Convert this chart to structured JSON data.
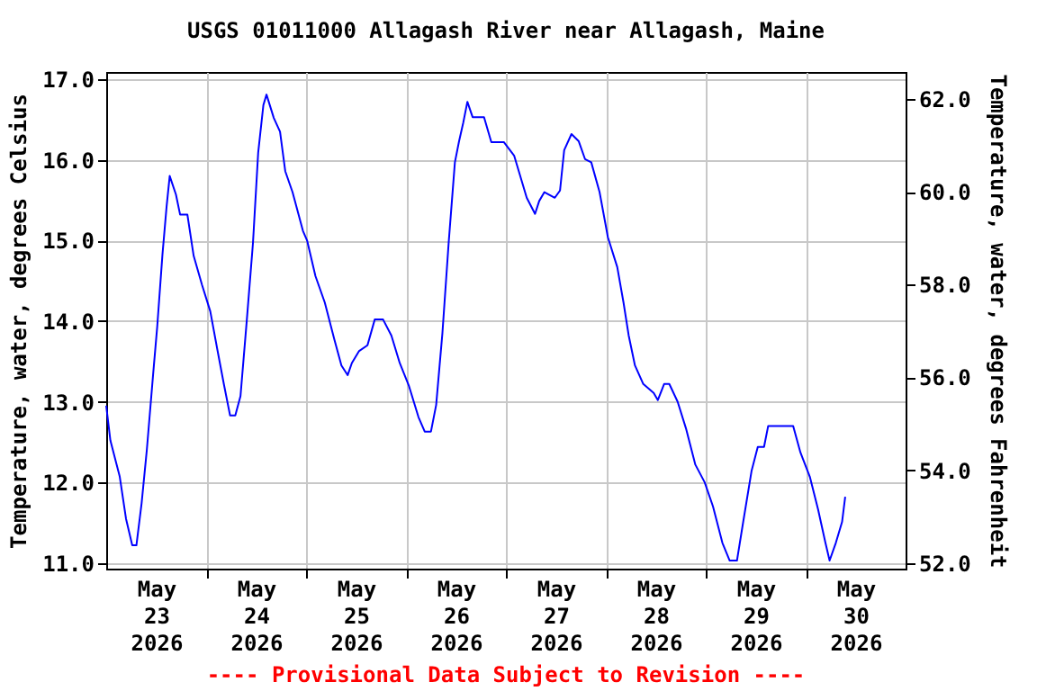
{
  "chart_data": {
    "type": "line",
    "title": "USGS 01011000 Allagash River near Allagash, Maine",
    "ylabel": "Temperature, water, degrees Celsius",
    "y2label": "Temperature, water, degrees Fahrenheit",
    "annotations": [
      "---- Provisional Data Subject to Revision ----"
    ],
    "xlim": [
      "2026-05-23T00:00",
      "2026-05-31T00:00"
    ],
    "xticks": [
      {
        "value": "2026-05-23T12:00",
        "label": "May\n23\n2026"
      },
      {
        "value": "2026-05-24T00:00",
        "label": null
      },
      {
        "value": "2026-05-24T12:00",
        "label": "May\n24\n2026"
      },
      {
        "value": "2026-05-25T00:00",
        "label": null
      },
      {
        "value": "2026-05-25T12:00",
        "label": "May\n25\n2026"
      },
      {
        "value": "2026-05-26T00:00",
        "label": null
      },
      {
        "value": "2026-05-26T12:00",
        "label": "May\n26\n2026"
      },
      {
        "value": "2026-05-27T00:00",
        "label": null
      },
      {
        "value": "2026-05-27T12:00",
        "label": "May\n27\n2026"
      },
      {
        "value": "2026-05-28T00:00",
        "label": null
      },
      {
        "value": "2026-05-28T12:00",
        "label": "May\n28\n2026"
      },
      {
        "value": "2026-05-29T00:00",
        "label": null
      },
      {
        "value": "2026-05-29T12:00",
        "label": "May\n29\n2026"
      },
      {
        "value": "2026-05-30T00:00",
        "label": null
      },
      {
        "value": "2026-05-30T12:00",
        "label": "May\n30\n2026"
      }
    ],
    "ylim": [
      10.93,
      17.09
    ],
    "yticks": [
      {
        "value": 11,
        "label": "11.0"
      },
      {
        "value": 12,
        "label": "12.0"
      },
      {
        "value": 13,
        "label": "13.0"
      },
      {
        "value": 14,
        "label": "14.0"
      },
      {
        "value": 15,
        "label": "15.0"
      },
      {
        "value": 16,
        "label": "16.0"
      },
      {
        "value": 17,
        "label": "17.0"
      }
    ],
    "y2lim": [
      51.88,
      62.58
    ],
    "y2ticks": [
      {
        "value": 52,
        "label": "52.0"
      },
      {
        "value": 54,
        "label": "54.0"
      },
      {
        "value": 56,
        "label": "56.0"
      },
      {
        "value": 58,
        "label": "58.0"
      },
      {
        "value": 60,
        "label": "60.0"
      },
      {
        "value": 62,
        "label": "62.0"
      }
    ],
    "grid": true,
    "line_style": "solid",
    "marker": "none",
    "x": [
      "2026-05-23T00:00",
      "2026-05-23T01:00",
      "2026-05-23T03:15",
      "2026-05-23T04:45",
      "2026-05-23T06:15",
      "2026-05-23T07:15",
      "2026-05-23T08:30",
      "2026-05-23T09:45",
      "2026-05-23T11:15",
      "2026-05-23T12:15",
      "2026-05-23T13:30",
      "2026-05-23T14:30",
      "2026-05-23T15:15",
      "2026-05-23T16:45",
      "2026-05-23T17:45",
      "2026-05-23T19:30",
      "2026-05-23T21:00",
      "2026-05-23T23:00",
      "2026-05-24T01:00",
      "2026-05-24T02:45",
      "2026-05-24T04:15",
      "2026-05-24T05:45",
      "2026-05-24T07:00",
      "2026-05-24T08:15",
      "2026-05-24T09:45",
      "2026-05-24T11:15",
      "2026-05-24T12:30",
      "2026-05-24T13:45",
      "2026-05-24T14:30",
      "2026-05-24T16:15",
      "2026-05-24T17:45",
      "2026-05-24T19:00",
      "2026-05-24T20:45",
      "2026-05-24T23:15",
      "2026-05-25T00:15",
      "2026-05-25T02:15",
      "2026-05-25T04:30",
      "2026-05-25T06:45",
      "2026-05-25T08:30",
      "2026-05-25T10:00",
      "2026-05-25T11:00",
      "2026-05-25T12:45",
      "2026-05-25T14:45",
      "2026-05-25T16:30",
      "2026-05-25T18:30",
      "2026-05-25T20:30",
      "2026-05-25T22:30",
      "2026-05-26T00:45",
      "2026-05-26T03:00",
      "2026-05-26T04:30",
      "2026-05-26T06:00",
      "2026-05-26T07:15",
      "2026-05-26T08:45",
      "2026-05-26T10:15",
      "2026-05-26T11:45",
      "2026-05-26T12:45",
      "2026-05-26T13:45",
      "2026-05-26T14:45",
      "2026-05-26T16:00",
      "2026-05-26T18:45",
      "2026-05-26T20:30",
      "2026-05-26T23:30",
      "2026-05-27T02:00",
      "2026-05-27T03:30",
      "2026-05-27T05:00",
      "2026-05-27T07:00",
      "2026-05-27T08:00",
      "2026-05-27T09:15",
      "2026-05-27T11:45",
      "2026-05-27T13:00",
      "2026-05-27T14:00",
      "2026-05-27T15:45",
      "2026-05-27T17:30",
      "2026-05-27T19:00",
      "2026-05-27T20:30",
      "2026-05-27T22:30",
      "2026-05-28T00:30",
      "2026-05-28T02:45",
      "2026-05-28T04:15",
      "2026-05-28T05:30",
      "2026-05-28T07:00",
      "2026-05-28T09:00",
      "2026-05-28T11:30",
      "2026-05-28T12:30",
      "2026-05-28T14:00",
      "2026-05-28T15:15",
      "2026-05-28T17:15",
      "2026-05-28T19:15",
      "2026-05-28T21:30",
      "2026-05-28T23:45",
      "2026-05-29T01:45",
      "2026-05-29T04:00",
      "2026-05-29T05:45",
      "2026-05-29T07:30",
      "2026-05-29T09:00",
      "2026-05-29T11:00",
      "2026-05-29T12:30",
      "2026-05-29T14:00",
      "2026-05-29T15:00",
      "2026-05-29T16:15",
      "2026-05-29T21:00",
      "2026-05-29T22:45",
      "2026-05-30T01:00",
      "2026-05-30T03:00",
      "2026-05-30T04:45",
      "2026-05-30T05:45",
      "2026-05-30T07:15",
      "2026-05-30T08:45",
      "2026-05-30T09:30"
    ],
    "series": [
      {
        "color": "#0000ff",
        "values": [
          12.95,
          12.52,
          12.07,
          11.55,
          11.22,
          11.22,
          11.74,
          12.4,
          13.33,
          13.93,
          14.82,
          15.42,
          15.8,
          15.57,
          15.32,
          15.32,
          14.81,
          14.45,
          14.12,
          13.63,
          13.22,
          12.83,
          12.83,
          13.07,
          14.0,
          14.97,
          16.09,
          16.68,
          16.81,
          16.52,
          16.35,
          15.86,
          15.6,
          15.12,
          15.0,
          14.56,
          14.23,
          13.78,
          13.45,
          13.33,
          13.48,
          13.63,
          13.7,
          14.02,
          14.02,
          13.82,
          13.48,
          13.19,
          12.81,
          12.63,
          12.63,
          12.96,
          13.85,
          14.97,
          15.97,
          16.23,
          16.46,
          16.72,
          16.53,
          16.53,
          16.22,
          16.22,
          16.05,
          15.79,
          15.53,
          15.33,
          15.49,
          15.6,
          15.53,
          15.62,
          16.12,
          16.32,
          16.23,
          16.01,
          15.97,
          15.6,
          15.04,
          14.67,
          14.23,
          13.82,
          13.45,
          13.22,
          13.11,
          13.02,
          13.22,
          13.22,
          13.0,
          12.67,
          12.22,
          12.0,
          11.7,
          11.25,
          11.03,
          11.03,
          11.51,
          12.14,
          12.44,
          12.44,
          12.7,
          12.7,
          12.7,
          12.37,
          12.07,
          11.66,
          11.25,
          11.03,
          11.25,
          11.51,
          11.82
        ]
      }
    ]
  }
}
